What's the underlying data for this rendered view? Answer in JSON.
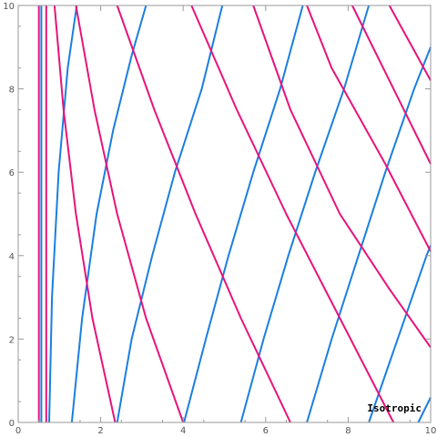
{
  "chart_data": {
    "type": "line",
    "title": "",
    "xlabel": "",
    "ylabel": "",
    "xlim": [
      0,
      10
    ],
    "ylim": [
      0,
      10
    ],
    "x_ticks": [
      "0",
      "2",
      "4",
      "6",
      "8",
      "10"
    ],
    "y_ticks": [
      "0",
      "2",
      "4",
      "6",
      "8",
      "10"
    ],
    "grid": false,
    "annotation": "Isotropic",
    "colors": {
      "blue": "#1a7fe0",
      "magenta": "#e8137a",
      "frame": "#999999"
    },
    "series": [
      {
        "color": "blue",
        "points": [
          [
            0.56,
            0
          ],
          [
            0.56,
            10
          ]
        ]
      },
      {
        "color": "blue",
        "points": [
          [
            0.75,
            0
          ],
          [
            0.82,
            3
          ],
          [
            0.98,
            6
          ],
          [
            1.2,
            8.5
          ],
          [
            1.42,
            10
          ]
        ]
      },
      {
        "color": "blue",
        "points": [
          [
            1.3,
            0
          ],
          [
            1.55,
            2.5
          ],
          [
            1.9,
            5
          ],
          [
            2.3,
            7
          ],
          [
            2.75,
            8.8
          ],
          [
            3.1,
            10
          ]
        ]
      },
      {
        "color": "blue",
        "points": [
          [
            2.4,
            0
          ],
          [
            2.75,
            2
          ],
          [
            3.25,
            4
          ],
          [
            3.8,
            6
          ],
          [
            4.45,
            8
          ],
          [
            4.95,
            10
          ]
        ]
      },
      {
        "color": "blue",
        "points": [
          [
            4.02,
            0
          ],
          [
            4.55,
            2
          ],
          [
            5.1,
            4
          ],
          [
            5.7,
            6
          ],
          [
            6.35,
            8
          ],
          [
            6.9,
            10
          ]
        ]
      },
      {
        "color": "blue",
        "points": [
          [
            5.4,
            0
          ],
          [
            5.95,
            2
          ],
          [
            6.55,
            4
          ],
          [
            7.2,
            6
          ],
          [
            7.9,
            8
          ],
          [
            8.5,
            10
          ]
        ]
      },
      {
        "color": "blue",
        "points": [
          [
            7.0,
            0
          ],
          [
            7.6,
            2
          ],
          [
            8.25,
            4
          ],
          [
            8.9,
            6
          ],
          [
            9.6,
            8
          ],
          [
            10,
            9.0
          ]
        ]
      },
      {
        "color": "blue",
        "points": [
          [
            8.5,
            0
          ],
          [
            9.2,
            2
          ],
          [
            9.9,
            4
          ],
          [
            10,
            4.25
          ]
        ]
      },
      {
        "color": "blue",
        "points": [
          [
            9.7,
            0
          ],
          [
            10,
            0.6
          ]
        ]
      },
      {
        "color": "magenta",
        "points": [
          [
            0.5,
            0
          ],
          [
            0.5,
            10
          ]
        ]
      },
      {
        "color": "magenta",
        "points": [
          [
            0.68,
            0
          ],
          [
            0.68,
            10
          ]
        ]
      },
      {
        "color": "magenta",
        "points": [
          [
            2.35,
            0
          ],
          [
            1.8,
            2.5
          ],
          [
            1.4,
            5
          ],
          [
            1.1,
            7.5
          ],
          [
            0.88,
            10
          ]
        ]
      },
      {
        "color": "magenta",
        "points": [
          [
            4.0,
            0
          ],
          [
            3.1,
            2.5
          ],
          [
            2.4,
            5
          ],
          [
            1.85,
            7.5
          ],
          [
            1.4,
            10
          ]
        ]
      },
      {
        "color": "magenta",
        "points": [
          [
            6.6,
            0
          ],
          [
            5.4,
            2.5
          ],
          [
            4.3,
            5
          ],
          [
            3.3,
            7.5
          ],
          [
            2.4,
            10
          ]
        ]
      },
      {
        "color": "magenta",
        "points": [
          [
            9.1,
            0
          ],
          [
            7.8,
            2.5
          ],
          [
            6.5,
            5
          ],
          [
            5.3,
            7.5
          ],
          [
            4.2,
            10
          ]
        ]
      },
      {
        "color": "magenta",
        "points": [
          [
            10,
            1.8
          ],
          [
            9.0,
            3.2
          ],
          [
            7.8,
            5
          ],
          [
            6.6,
            7.5
          ],
          [
            5.7,
            10
          ]
        ]
      },
      {
        "color": "magenta",
        "points": [
          [
            10,
            4.1
          ],
          [
            8.9,
            6.2
          ],
          [
            7.6,
            8.5
          ],
          [
            7.0,
            10
          ]
        ]
      },
      {
        "color": "magenta",
        "points": [
          [
            10,
            6.2
          ],
          [
            8.9,
            8.4
          ],
          [
            8.1,
            10
          ]
        ]
      },
      {
        "color": "magenta",
        "points": [
          [
            10,
            8.2
          ],
          [
            9.0,
            10
          ]
        ]
      }
    ]
  }
}
